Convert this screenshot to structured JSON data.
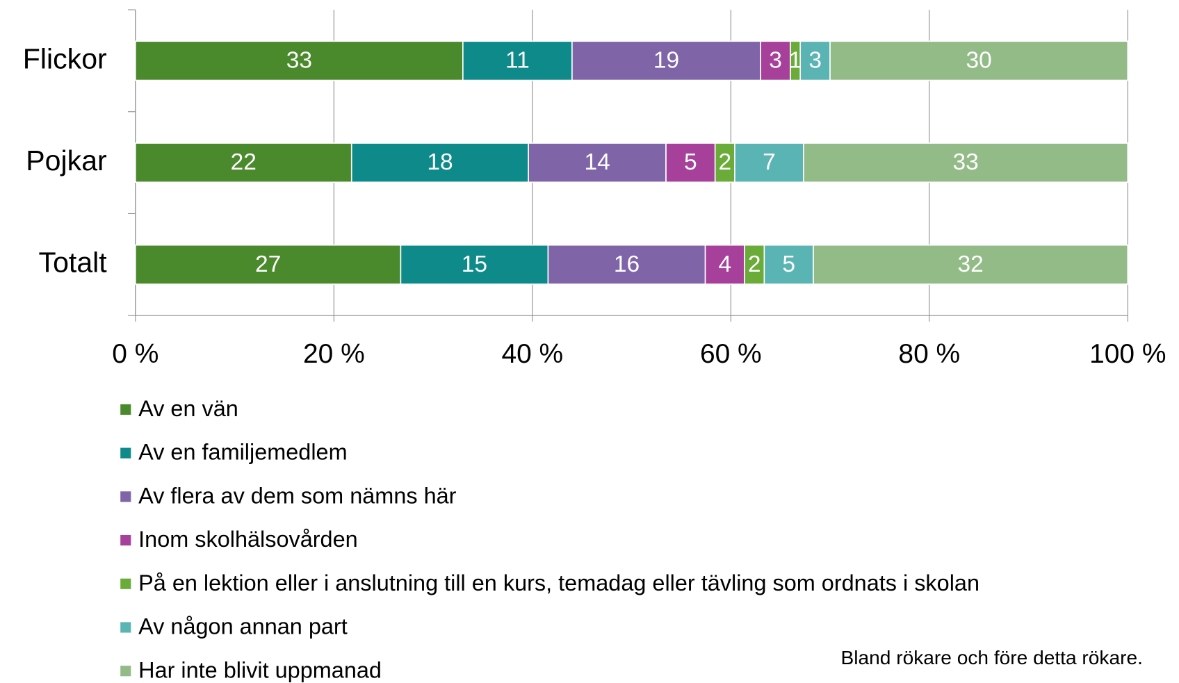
{
  "chart_data": {
    "type": "bar",
    "orientation": "horizontal",
    "stacking": "percent",
    "categories": [
      "Flickor",
      "Pojkar",
      "Totalt"
    ],
    "series": [
      {
        "name": "Av en vän",
        "color": "#4a8a2c",
        "values": [
          33,
          22,
          27
        ]
      },
      {
        "name": "Av en familjemedlem",
        "color": "#0e8a8a",
        "values": [
          11,
          18,
          15
        ]
      },
      {
        "name": "Av flera av dem som nämns här",
        "color": "#8064a8",
        "values": [
          19,
          14,
          16
        ]
      },
      {
        "name": "Inom skolhälsovården",
        "color": "#a6409a",
        "values": [
          3,
          5,
          4
        ]
      },
      {
        "name": "På en lektion eller i anslutning till en kurs, temadag eller tävling som ordnats i skolan",
        "color": "#6aab3a",
        "values": [
          1,
          2,
          2
        ]
      },
      {
        "name": "Av någon annan part",
        "color": "#5bb4b4",
        "values": [
          3,
          7,
          5
        ]
      },
      {
        "name": "Har inte blivit uppmanad",
        "color": "#93bb87",
        "values": [
          30,
          33,
          32
        ]
      }
    ],
    "xlim": [
      0,
      100
    ],
    "xticks": [
      {
        "value": 0,
        "label": "0 %"
      },
      {
        "value": 20,
        "label": "20 %"
      },
      {
        "value": 40,
        "label": "40 %"
      },
      {
        "value": 60,
        "label": "60 %"
      },
      {
        "value": 80,
        "label": "80 %"
      },
      {
        "value": 100,
        "label": "100 %"
      }
    ],
    "grid": true,
    "legend": "bottom",
    "annotation": "Bland rökare och före detta rökare."
  }
}
